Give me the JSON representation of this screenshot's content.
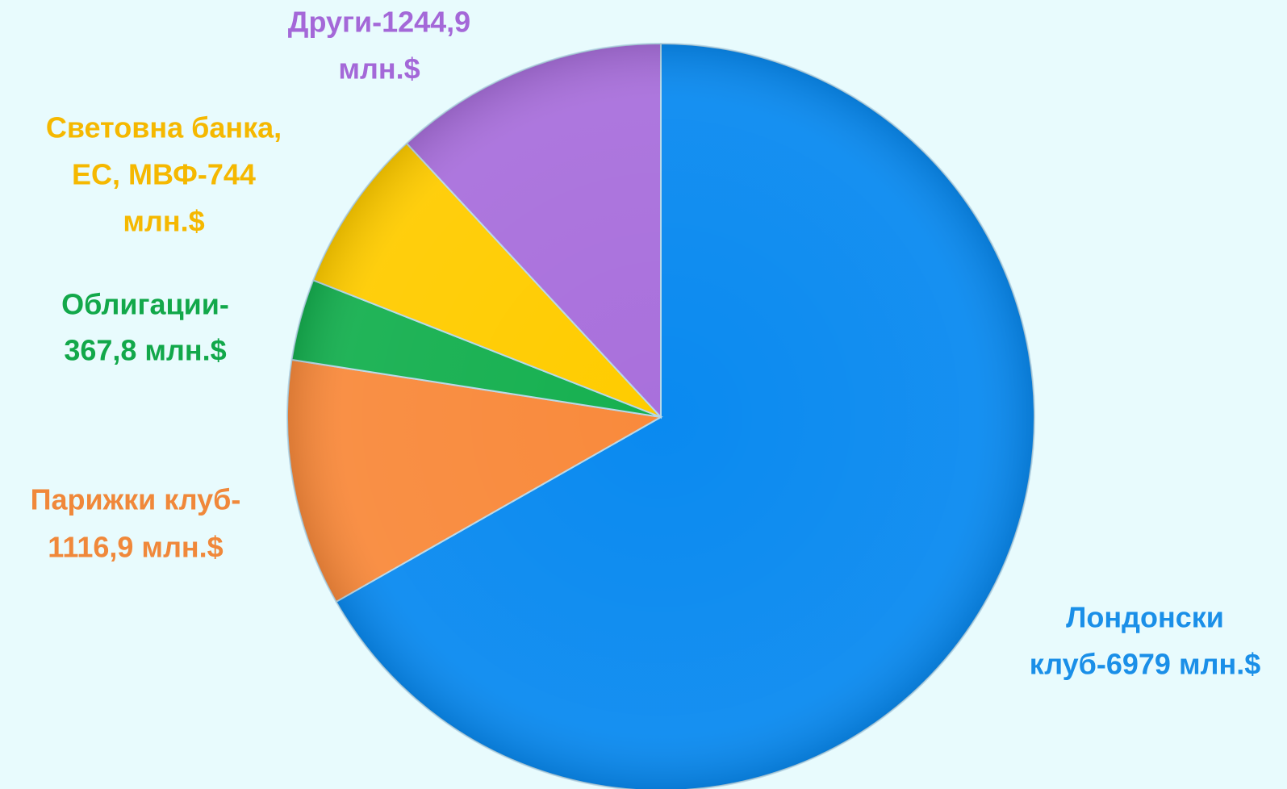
{
  "chart_data": {
    "type": "pie",
    "categories": [
      [
        "Лондонски",
        "клуб-6979 млн.$"
      ],
      [
        "Парижки клуб-",
        "1116,9 млн.$"
      ],
      [
        "Облигации-",
        "367,8 млн.$"
      ],
      [
        "Световна банка,",
        "ЕС, МВФ-744",
        "млн.$"
      ],
      [
        "Други-1244,9",
        "млн.$"
      ]
    ],
    "values": [
      6979,
      1116.9,
      367.8,
      744,
      1244.9
    ],
    "colors": [
      "#0a8af0",
      "#f98a3c",
      "#16b050",
      "#ffcc00",
      "#a970dc"
    ],
    "label_colors": [
      "#1a8fe8",
      "#f0883a",
      "#12a84a",
      "#f5b800",
      "#a468d8"
    ]
  }
}
